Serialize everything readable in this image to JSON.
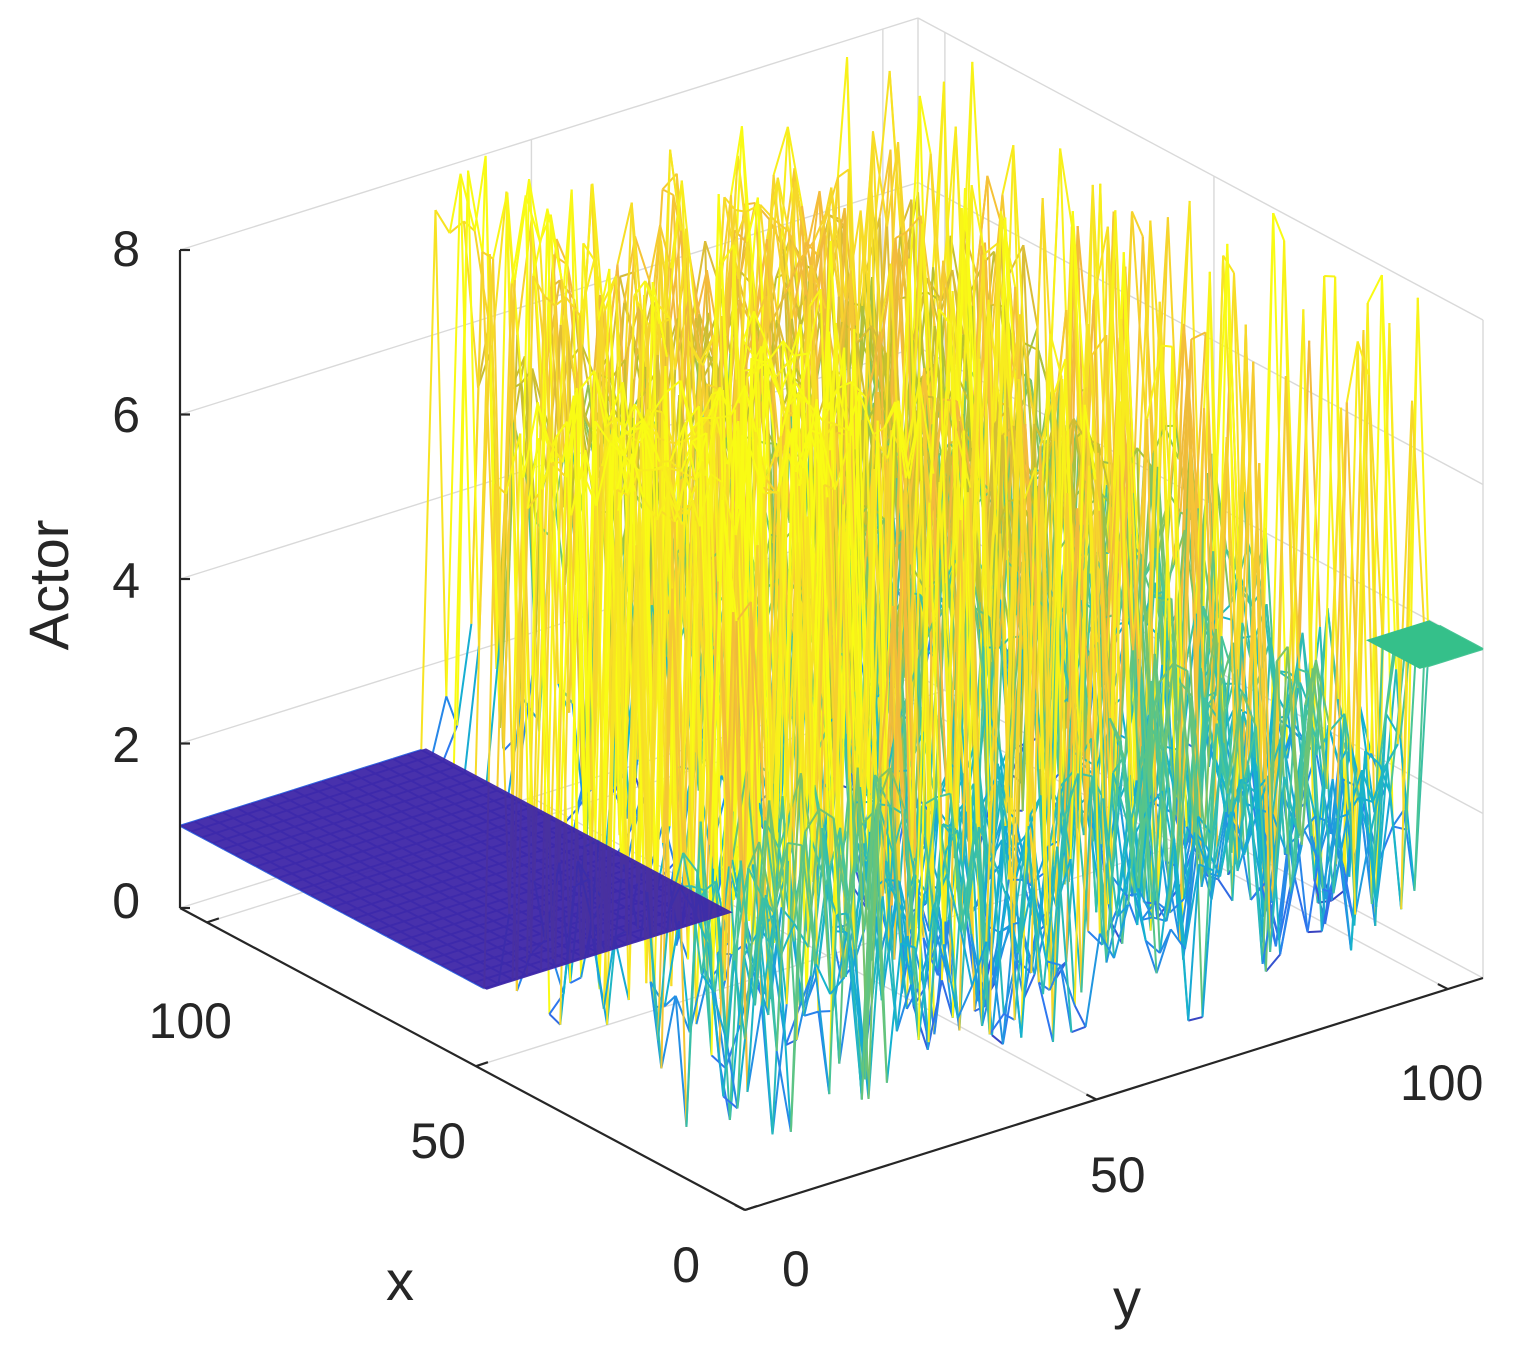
{
  "chart_data": {
    "type": "surface",
    "xlabel": "x",
    "ylabel": "y",
    "zlabel": "Actor",
    "xlim": [
      0,
      105
    ],
    "ylim": [
      0,
      105
    ],
    "zlim": [
      0,
      8
    ],
    "x_ticks": [
      "0",
      "50",
      "100"
    ],
    "y_ticks": [
      "0",
      "50",
      "100"
    ],
    "z_ticks": [
      "0",
      "2",
      "4",
      "6",
      "8"
    ],
    "grid": true,
    "colormap": [
      "#3e26a8",
      "#2e79f1",
      "#14b2cf",
      "#4ac596",
      "#b9c02e",
      "#f4ba3c",
      "#f9fb14"
    ],
    "description_values": {
      "flat_region_low": {
        "x_range": [
          50,
          105
        ],
        "y_range": [
          0,
          35
        ],
        "value": 1
      },
      "flat_region_mid": {
        "x_range": [
          0,
          10
        ],
        "y_range": [
          95,
          105
        ],
        "value": 4
      },
      "noisy_region_range": [
        0,
        8
      ]
    }
  }
}
